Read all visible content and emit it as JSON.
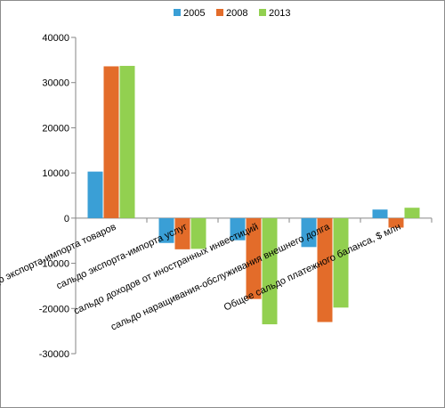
{
  "chart_data": {
    "type": "bar",
    "categories": [
      "сальдо экспорта-импорта товаров",
      "сальдо экспорта-импорта услуг",
      "сальдо доходов от иностранных инвестиций",
      "сальдо наращивания-обслуживания внешнего долга",
      "Общее сальдо платежного баланса, $ млн"
    ],
    "series": [
      {
        "name": "2005",
        "color": "#3a9fd6",
        "values": [
          10300,
          -5500,
          -4900,
          -6400,
          1900
        ]
      },
      {
        "name": "2008",
        "color": "#e36c2a",
        "values": [
          33600,
          -6900,
          -17900,
          -23000,
          -2100
        ]
      },
      {
        "name": "2013",
        "color": "#92d050",
        "values": [
          33700,
          -6800,
          -23500,
          -19800,
          2300
        ]
      }
    ],
    "ylim": [
      -30000,
      40000
    ],
    "yticks": [
      40000,
      30000,
      20000,
      10000,
      0,
      -10000,
      -20000,
      -30000
    ],
    "legend_position": "top",
    "grid": false,
    "title": "",
    "xlabel": "",
    "ylabel": ""
  }
}
